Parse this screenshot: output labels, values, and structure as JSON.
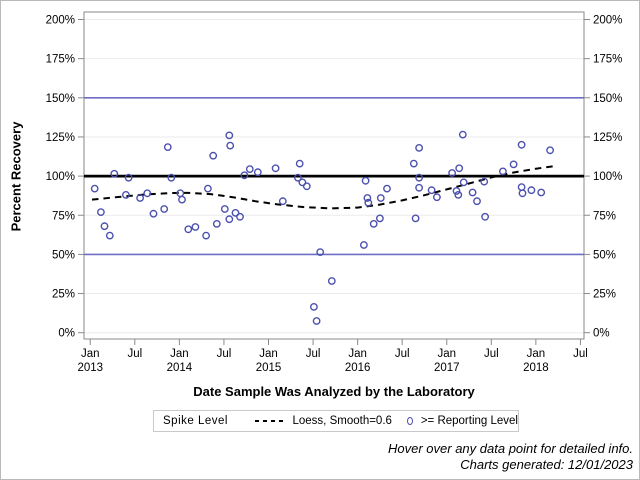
{
  "footer": {
    "line1": "Hover over any data point for detailed info.",
    "line2": "Charts generated: 12/01/2023"
  },
  "legend": {
    "title": "Spike Level",
    "position": "bottom-center"
  },
  "chart_data": {
    "type": "scatter",
    "title": "",
    "xlabel": "Date Sample Was Analyzed by the Laboratory",
    "ylabel": "Percent Recovery",
    "x_domain": [
      2012.93,
      2018.54
    ],
    "ylim": [
      0,
      200
    ],
    "y_ticks": [
      0,
      25,
      50,
      75,
      100,
      125,
      150,
      175,
      200
    ],
    "y_tick_suffix": "%",
    "y_axis_mirrored": true,
    "grid": true,
    "grid_color": "#ebebeb",
    "frame_color": "#8a8a8a",
    "tick_color": "#8a8a8a",
    "x_ticks": [
      {
        "date": 2013.0,
        "line1": "Jan",
        "line2": "2013"
      },
      {
        "date": 2013.5,
        "line1": "Jul",
        "line2": ""
      },
      {
        "date": 2014.0,
        "line1": "Jan",
        "line2": "2014"
      },
      {
        "date": 2014.5,
        "line1": "Jul",
        "line2": ""
      },
      {
        "date": 2015.0,
        "line1": "Jan",
        "line2": "2015"
      },
      {
        "date": 2015.5,
        "line1": "Jul",
        "line2": ""
      },
      {
        "date": 2016.0,
        "line1": "Jan",
        "line2": "2016"
      },
      {
        "date": 2016.5,
        "line1": "Jul",
        "line2": ""
      },
      {
        "date": 2017.0,
        "line1": "Jan",
        "line2": "2017"
      },
      {
        "date": 2017.5,
        "line1": "Jul",
        "line2": ""
      },
      {
        "date": 2018.0,
        "line1": "Jan",
        "line2": "2018"
      },
      {
        "date": 2018.5,
        "line1": "Jul",
        "line2": ""
      }
    ],
    "reference_lines": [
      {
        "value": 50,
        "color": "#6e6ec2",
        "width": 1.6
      },
      {
        "value": 150,
        "color": "#6e6ec2",
        "width": 1.6
      },
      {
        "value": 100,
        "color": "#000000",
        "width": 2.8
      }
    ],
    "series": [
      {
        "name": "Loess, Smooth=0.6",
        "type": "line",
        "style": "dashed",
        "color": "#000000",
        "points": [
          [
            2013.02,
            85.0
          ],
          [
            2013.3,
            86.6
          ],
          [
            2013.6,
            88.2
          ],
          [
            2013.9,
            89.2
          ],
          [
            2014.1,
            89.3
          ],
          [
            2014.35,
            88.5
          ],
          [
            2014.6,
            86.5
          ],
          [
            2014.85,
            84.0
          ],
          [
            2015.1,
            81.9
          ],
          [
            2015.4,
            80.2
          ],
          [
            2015.7,
            79.4
          ],
          [
            2016.0,
            79.9
          ],
          [
            2016.25,
            81.8
          ],
          [
            2016.5,
            84.5
          ],
          [
            2016.75,
            87.8
          ],
          [
            2017.0,
            91.5
          ],
          [
            2017.25,
            95.3
          ],
          [
            2017.5,
            99.2
          ],
          [
            2017.75,
            102.3
          ],
          [
            2018.0,
            104.7
          ],
          [
            2018.2,
            106.3
          ]
        ]
      },
      {
        "name": ">= Reporting Level",
        "type": "scatter",
        "marker": "circle-open",
        "color": "#4b50ae",
        "points": [
          [
            2013.05,
            92
          ],
          [
            2013.12,
            77
          ],
          [
            2013.16,
            68
          ],
          [
            2013.22,
            62
          ],
          [
            2013.27,
            101.5
          ],
          [
            2013.4,
            88
          ],
          [
            2013.43,
            99
          ],
          [
            2013.56,
            86
          ],
          [
            2013.64,
            89
          ],
          [
            2013.71,
            76
          ],
          [
            2013.83,
            79
          ],
          [
            2013.87,
            118.5
          ],
          [
            2013.91,
            99
          ],
          [
            2014.01,
            89
          ],
          [
            2014.03,
            85
          ],
          [
            2014.1,
            66
          ],
          [
            2014.18,
            67.5
          ],
          [
            2014.3,
            62
          ],
          [
            2014.32,
            92
          ],
          [
            2014.38,
            113
          ],
          [
            2014.42,
            69.5
          ],
          [
            2014.51,
            79
          ],
          [
            2014.56,
            72.5
          ],
          [
            2014.56,
            126
          ],
          [
            2014.57,
            119.5
          ],
          [
            2014.63,
            76.5
          ],
          [
            2014.68,
            74
          ],
          [
            2014.73,
            100.5
          ],
          [
            2014.79,
            104.5
          ],
          [
            2014.88,
            102.5
          ],
          [
            2015.08,
            105
          ],
          [
            2015.16,
            84
          ],
          [
            2015.33,
            99
          ],
          [
            2015.35,
            108
          ],
          [
            2015.38,
            96
          ],
          [
            2015.43,
            93.5
          ],
          [
            2015.51,
            16.5
          ],
          [
            2015.54,
            7.5
          ],
          [
            2015.58,
            51.5
          ],
          [
            2015.71,
            33
          ],
          [
            2016.07,
            56
          ],
          [
            2016.09,
            97
          ],
          [
            2016.11,
            86
          ],
          [
            2016.12,
            83
          ],
          [
            2016.18,
            69.5
          ],
          [
            2016.25,
            73
          ],
          [
            2016.26,
            86
          ],
          [
            2016.33,
            92
          ],
          [
            2016.63,
            108
          ],
          [
            2016.65,
            73
          ],
          [
            2016.69,
            118
          ],
          [
            2016.69,
            99
          ],
          [
            2016.69,
            92.5
          ],
          [
            2016.83,
            91
          ],
          [
            2016.89,
            86.5
          ],
          [
            2017.06,
            102
          ],
          [
            2017.11,
            90.5
          ],
          [
            2017.13,
            88
          ],
          [
            2017.14,
            105
          ],
          [
            2017.18,
            126.5
          ],
          [
            2017.19,
            96
          ],
          [
            2017.29,
            89.5
          ],
          [
            2017.34,
            84
          ],
          [
            2017.42,
            96.5
          ],
          [
            2017.43,
            74
          ],
          [
            2017.63,
            103
          ],
          [
            2017.75,
            107.5
          ],
          [
            2017.84,
            120
          ],
          [
            2017.84,
            93
          ],
          [
            2017.85,
            89
          ],
          [
            2017.95,
            91
          ],
          [
            2018.06,
            89.5
          ],
          [
            2018.16,
            116.5
          ]
        ]
      }
    ]
  }
}
